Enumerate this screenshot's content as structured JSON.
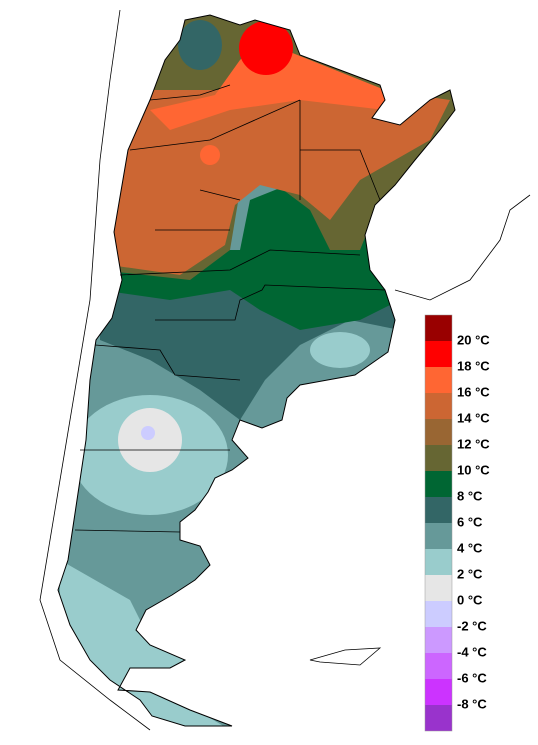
{
  "legend": {
    "colors": [
      "#990000",
      "#ff0000",
      "#ff6633",
      "#cc6633",
      "#996633",
      "#666633",
      "#006633",
      "#336666",
      "#669999",
      "#99cccc",
      "#e6e6e6",
      "#ccccff",
      "#cc99ff",
      "#cc66ff",
      "#cc33ff",
      "#9933cc"
    ],
    "labels": [
      "20 °C",
      "18 °C",
      "16 °C",
      "14 °C",
      "12 °C",
      "10 °C",
      "8 °C",
      "6 °C",
      "4 °C",
      "2 °C",
      "0 °C",
      "-2 °C",
      "-4 °C",
      "-6 °C",
      "-8 °C"
    ]
  }
}
